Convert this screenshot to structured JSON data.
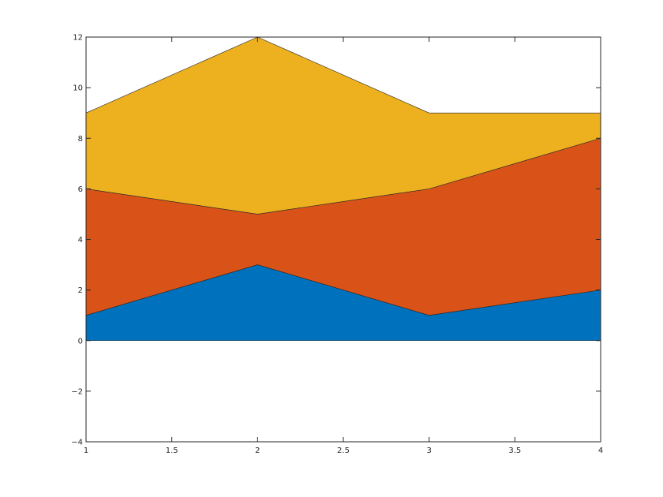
{
  "chart_data": {
    "type": "area",
    "stacked": true,
    "title": "",
    "xlabel": "",
    "ylabel": "",
    "x": [
      1,
      2,
      3,
      4
    ],
    "xlim": [
      1,
      4
    ],
    "ylim": [
      -4,
      12
    ],
    "x_ticks": [
      1,
      1.5,
      2,
      2.5,
      3,
      3.5,
      4
    ],
    "x_tick_labels": [
      "1",
      "1.5",
      "2",
      "2.5",
      "3",
      "3.5",
      "4"
    ],
    "y_ticks": [
      -4,
      -2,
      0,
      2,
      4,
      6,
      8,
      10,
      12
    ],
    "y_tick_labels": [
      "−4",
      "−2",
      "0",
      "2",
      "4",
      "6",
      "8",
      "10",
      "12"
    ],
    "grid": false,
    "legend": "none",
    "series": [
      {
        "values": [
          1,
          3,
          1,
          2
        ],
        "color": "#0072bd"
      },
      {
        "values": [
          5,
          2,
          5,
          6
        ],
        "color": "#d95319"
      },
      {
        "values": [
          3,
          7,
          3,
          1
        ],
        "color": "#edb120"
      }
    ]
  }
}
